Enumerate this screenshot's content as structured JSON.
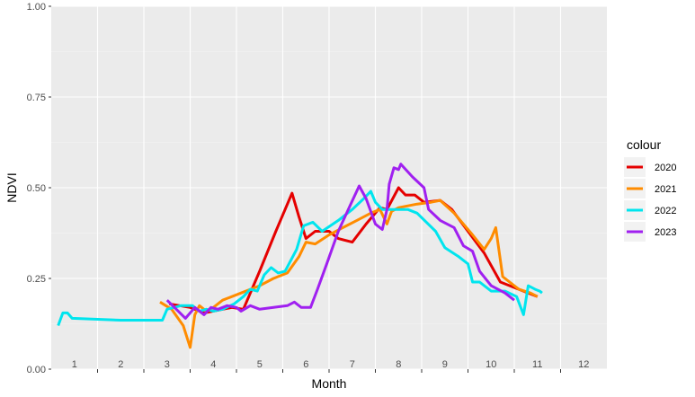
{
  "chart_data": {
    "type": "line",
    "xlabel": "Month",
    "ylabel": "NDVI",
    "xlim": [
      0.5,
      12.5
    ],
    "ylim": [
      0,
      1
    ],
    "x_ticks": [
      1,
      2,
      3,
      4,
      5,
      6,
      7,
      8,
      9,
      10,
      11,
      12
    ],
    "x_tick_labels": [
      "1",
      "2",
      "3",
      "4",
      "5",
      "6",
      "7",
      "8",
      "9",
      "10",
      "11",
      "12"
    ],
    "y_ticks": [
      0,
      0.25,
      0.5,
      0.75,
      1.0
    ],
    "y_tick_labels": [
      "0.00",
      "0.25",
      "0.50",
      "0.75",
      "1.00"
    ],
    "grid": true,
    "legend_title": "colour",
    "legend_position": "right",
    "series": [
      {
        "name": "2020",
        "color": "#e50000",
        "points": [
          [
            3.05,
            0.18
          ],
          [
            3.5,
            0.17
          ],
          [
            3.8,
            0.155
          ],
          [
            4.0,
            0.16
          ],
          [
            4.4,
            0.17
          ],
          [
            4.65,
            0.165
          ],
          [
            5.0,
            0.27
          ],
          [
            5.35,
            0.38
          ],
          [
            5.7,
            0.485
          ],
          [
            5.85,
            0.42
          ],
          [
            6.0,
            0.36
          ],
          [
            6.2,
            0.38
          ],
          [
            6.5,
            0.38
          ],
          [
            6.7,
            0.36
          ],
          [
            7.0,
            0.35
          ],
          [
            7.3,
            0.4
          ],
          [
            7.6,
            0.445
          ],
          [
            7.75,
            0.44
          ],
          [
            8.0,
            0.5
          ],
          [
            8.15,
            0.48
          ],
          [
            8.35,
            0.48
          ],
          [
            8.55,
            0.46
          ],
          [
            8.9,
            0.465
          ],
          [
            9.15,
            0.44
          ],
          [
            9.5,
            0.38
          ],
          [
            9.85,
            0.32
          ],
          [
            10.2,
            0.24
          ],
          [
            10.6,
            0.22
          ],
          [
            11.0,
            0.2
          ]
        ]
      },
      {
        "name": "2021",
        "color": "#ff8c00",
        "points": [
          [
            2.85,
            0.185
          ],
          [
            3.1,
            0.165
          ],
          [
            3.35,
            0.12
          ],
          [
            3.5,
            0.06
          ],
          [
            3.6,
            0.15
          ],
          [
            3.7,
            0.175
          ],
          [
            3.85,
            0.16
          ],
          [
            4.0,
            0.17
          ],
          [
            4.2,
            0.19
          ],
          [
            4.6,
            0.21
          ],
          [
            5.0,
            0.23
          ],
          [
            5.3,
            0.25
          ],
          [
            5.6,
            0.265
          ],
          [
            5.85,
            0.31
          ],
          [
            6.0,
            0.35
          ],
          [
            6.2,
            0.345
          ],
          [
            6.5,
            0.37
          ],
          [
            6.8,
            0.39
          ],
          [
            7.1,
            0.41
          ],
          [
            7.4,
            0.43
          ],
          [
            7.6,
            0.44
          ],
          [
            7.75,
            0.4
          ],
          [
            7.85,
            0.435
          ],
          [
            8.0,
            0.445
          ],
          [
            8.4,
            0.455
          ],
          [
            8.7,
            0.46
          ],
          [
            8.9,
            0.465
          ],
          [
            9.2,
            0.43
          ],
          [
            9.6,
            0.37
          ],
          [
            9.85,
            0.33
          ],
          [
            10.0,
            0.36
          ],
          [
            10.1,
            0.39
          ],
          [
            10.25,
            0.255
          ],
          [
            10.6,
            0.22
          ],
          [
            10.85,
            0.21
          ],
          [
            11.0,
            0.2
          ]
        ]
      },
      {
        "name": "2022",
        "color": "#00e5ee",
        "points": [
          [
            0.65,
            0.12
          ],
          [
            0.75,
            0.155
          ],
          [
            0.85,
            0.155
          ],
          [
            0.95,
            0.14
          ],
          [
            2.0,
            0.135
          ],
          [
            2.9,
            0.135
          ],
          [
            3.0,
            0.165
          ],
          [
            3.3,
            0.175
          ],
          [
            3.55,
            0.175
          ],
          [
            3.7,
            0.16
          ],
          [
            3.85,
            0.165
          ],
          [
            4.0,
            0.16
          ],
          [
            4.2,
            0.165
          ],
          [
            4.45,
            0.18
          ],
          [
            4.65,
            0.2
          ],
          [
            4.8,
            0.22
          ],
          [
            4.95,
            0.215
          ],
          [
            5.1,
            0.26
          ],
          [
            5.25,
            0.28
          ],
          [
            5.4,
            0.265
          ],
          [
            5.55,
            0.27
          ],
          [
            5.8,
            0.33
          ],
          [
            5.95,
            0.395
          ],
          [
            6.15,
            0.405
          ],
          [
            6.35,
            0.38
          ],
          [
            6.7,
            0.41
          ],
          [
            7.0,
            0.44
          ],
          [
            7.25,
            0.47
          ],
          [
            7.4,
            0.49
          ],
          [
            7.5,
            0.46
          ],
          [
            7.65,
            0.44
          ],
          [
            8.0,
            0.44
          ],
          [
            8.2,
            0.44
          ],
          [
            8.4,
            0.43
          ],
          [
            8.8,
            0.38
          ],
          [
            9.0,
            0.335
          ],
          [
            9.3,
            0.31
          ],
          [
            9.5,
            0.29
          ],
          [
            9.6,
            0.24
          ],
          [
            9.75,
            0.24
          ],
          [
            10.0,
            0.215
          ],
          [
            10.3,
            0.215
          ],
          [
            10.55,
            0.2
          ],
          [
            10.7,
            0.15
          ],
          [
            10.8,
            0.23
          ],
          [
            10.95,
            0.22
          ],
          [
            11.05,
            0.215
          ],
          [
            11.1,
            0.21
          ]
        ]
      },
      {
        "name": "2023",
        "color": "#a020f0",
        "points": [
          [
            3.0,
            0.19
          ],
          [
            3.2,
            0.165
          ],
          [
            3.4,
            0.14
          ],
          [
            3.6,
            0.17
          ],
          [
            3.8,
            0.15
          ],
          [
            3.95,
            0.17
          ],
          [
            4.1,
            0.165
          ],
          [
            4.3,
            0.175
          ],
          [
            4.5,
            0.17
          ],
          [
            4.6,
            0.16
          ],
          [
            4.8,
            0.175
          ],
          [
            5.0,
            0.165
          ],
          [
            5.3,
            0.17
          ],
          [
            5.6,
            0.175
          ],
          [
            5.75,
            0.185
          ],
          [
            5.9,
            0.17
          ],
          [
            6.1,
            0.17
          ],
          [
            6.25,
            0.22
          ],
          [
            6.45,
            0.29
          ],
          [
            6.7,
            0.38
          ],
          [
            6.95,
            0.45
          ],
          [
            7.15,
            0.505
          ],
          [
            7.3,
            0.47
          ],
          [
            7.5,
            0.4
          ],
          [
            7.65,
            0.385
          ],
          [
            7.75,
            0.44
          ],
          [
            7.8,
            0.51
          ],
          [
            7.9,
            0.555
          ],
          [
            8.0,
            0.55
          ],
          [
            8.05,
            0.565
          ],
          [
            8.3,
            0.53
          ],
          [
            8.55,
            0.5
          ],
          [
            8.65,
            0.44
          ],
          [
            8.9,
            0.41
          ],
          [
            9.2,
            0.39
          ],
          [
            9.4,
            0.34
          ],
          [
            9.6,
            0.325
          ],
          [
            9.75,
            0.27
          ],
          [
            10.0,
            0.23
          ],
          [
            10.3,
            0.21
          ],
          [
            10.5,
            0.19
          ]
        ]
      }
    ]
  }
}
